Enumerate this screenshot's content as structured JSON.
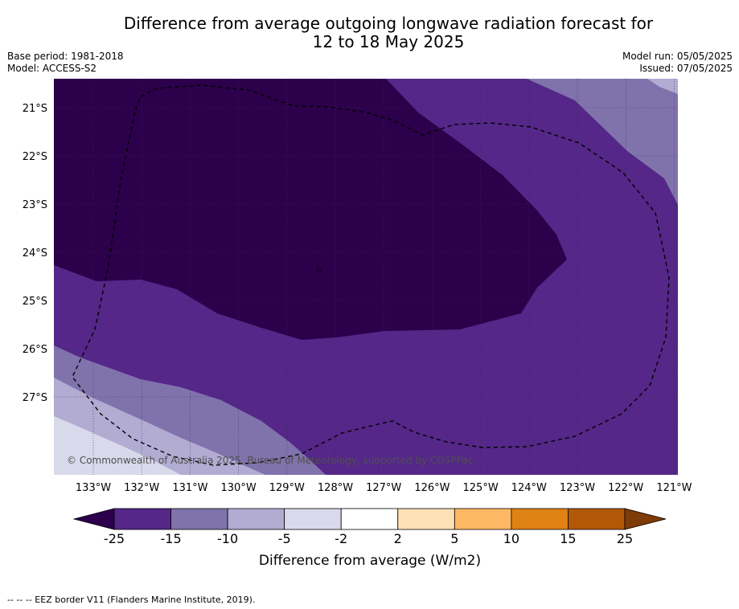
{
  "title_line1": "Difference from average outgoing longwave radiation forecast for",
  "title_line2": "12 to 18 May 2025",
  "base_period": "Base period: 1981-2018",
  "model": "Model: ACCESS-S2",
  "model_run": "Model run: 05/05/2025",
  "issued": "Issued: 07/05/2025",
  "copyright": "© Commonwealth of Australia 2025, Bureau of Meteorology, supported by COSPPac",
  "lat_labels": [
    "21°S",
    "22°S",
    "23°S",
    "24°S",
    "25°S",
    "26°S",
    "27°S"
  ],
  "lon_labels": [
    "133°W",
    "132°W",
    "131°W",
    "130°W",
    "129°W",
    "128°W",
    "127°W",
    "126°W",
    "125°W",
    "124°W",
    "123°W",
    "122°W",
    "121°W"
  ],
  "colorbar": {
    "title": "Difference from average (W/m2)",
    "ticks": [
      "-25",
      "-15",
      "-10",
      "-5",
      "-2",
      "2",
      "5",
      "10",
      "15",
      "25"
    ],
    "colors": [
      "#2c004b",
      "#542788",
      "#8073ac",
      "#b2abd2",
      "#d8daeb",
      "#ffffff",
      "#fee0b6",
      "#fdb863",
      "#e08214",
      "#b35806",
      "#7f3b08"
    ]
  },
  "footer": "-- -- -- EEZ border V11 (Flanders Marine Institute, 2019)."
}
